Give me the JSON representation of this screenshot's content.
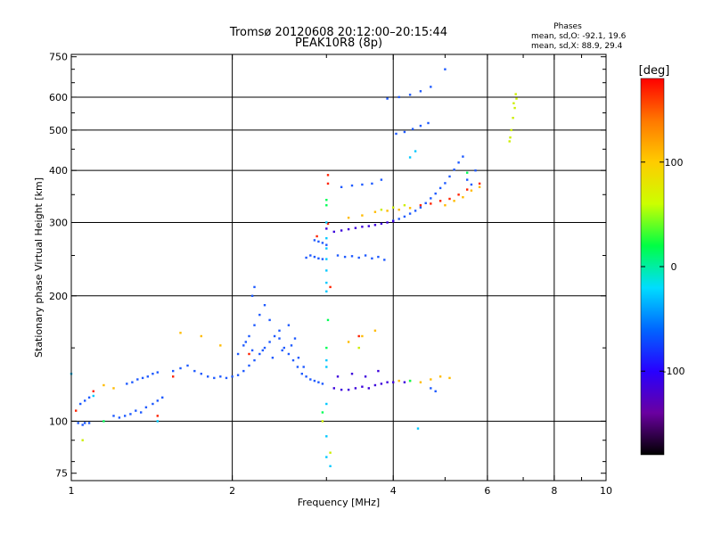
{
  "chart_data": {
    "type": "scatter",
    "title": "Tromsø 20120608 20:12:00–20:15:44",
    "subtitle": "PEAK10R8 (8p)",
    "xlabel": "Frequency [MHz]",
    "ylabel": "Stationary phase Virtual Height [km]",
    "x_scale": "log",
    "y_scale": "log",
    "xlim": [
      1,
      10
    ],
    "ylim": [
      72,
      760
    ],
    "x_ticks": [
      1,
      2,
      4,
      6,
      8,
      10
    ],
    "x_minor_ticks": [
      3,
      5,
      7,
      9
    ],
    "y_ticks": [
      75,
      100,
      200,
      300,
      400,
      500,
      600,
      750
    ],
    "y_minor_ticks": [
      80,
      90,
      150,
      250,
      350,
      450,
      550,
      650,
      700
    ],
    "grid_x": [
      1,
      2,
      4,
      6,
      8
    ],
    "grid_y": [
      100,
      200,
      300,
      400,
      500,
      600
    ],
    "phases": {
      "heading": "Phases",
      "line_o": "mean, sd,O: -92.1, 19.6",
      "line_x": "mean, sd,X:  88.9, 29.4"
    },
    "colorbar": {
      "label": "[deg]",
      "min": -180,
      "max": 180,
      "ticks": [
        100,
        0,
        -100
      ],
      "colors": [
        "#000000",
        "#6a00a0",
        "#2800ff",
        "#0066ff",
        "#00ddff",
        "#00ff44",
        "#ccff00",
        "#ffcc00",
        "#ff7700",
        "#ff0000"
      ]
    },
    "series": [
      {
        "color": "#1e5aff",
        "points": [
          [
            1.03,
            99
          ],
          [
            1.05,
            98
          ],
          [
            1.06,
            99
          ],
          [
            1.08,
            99
          ],
          [
            1.04,
            110
          ],
          [
            1.06,
            112
          ],
          [
            1.08,
            114
          ],
          [
            1.2,
            103
          ],
          [
            1.23,
            102
          ],
          [
            1.26,
            103
          ],
          [
            1.29,
            104
          ],
          [
            1.32,
            106
          ],
          [
            1.35,
            105
          ],
          [
            1.38,
            108
          ],
          [
            1.42,
            110
          ],
          [
            1.45,
            112
          ],
          [
            1.48,
            114
          ],
          [
            1.27,
            123
          ],
          [
            1.3,
            124
          ],
          [
            1.33,
            126
          ],
          [
            1.36,
            127
          ],
          [
            1.39,
            128
          ],
          [
            1.42,
            130
          ],
          [
            1.45,
            131
          ],
          [
            1.55,
            132
          ],
          [
            1.6,
            134
          ],
          [
            1.65,
            136
          ],
          [
            1.7,
            132
          ],
          [
            1.75,
            130
          ],
          [
            1.8,
            128
          ],
          [
            1.85,
            127
          ],
          [
            1.9,
            128
          ],
          [
            1.95,
            127
          ],
          [
            2.0,
            128
          ],
          [
            2.05,
            129
          ],
          [
            2.1,
            132
          ],
          [
            2.15,
            136
          ],
          [
            2.2,
            140
          ],
          [
            2.25,
            145
          ],
          [
            2.3,
            150
          ],
          [
            2.35,
            155
          ],
          [
            2.4,
            160
          ],
          [
            2.45,
            158
          ],
          [
            2.5,
            150
          ],
          [
            2.55,
            145
          ],
          [
            2.6,
            140
          ],
          [
            2.65,
            135
          ],
          [
            2.7,
            130
          ],
          [
            2.75,
            128
          ],
          [
            2.8,
            126
          ],
          [
            2.85,
            125
          ],
          [
            2.9,
            124
          ],
          [
            2.95,
            123
          ],
          [
            2.05,
            145
          ],
          [
            2.1,
            152
          ],
          [
            2.15,
            160
          ],
          [
            2.2,
            170
          ],
          [
            2.25,
            180
          ],
          [
            2.3,
            190
          ],
          [
            2.35,
            175
          ],
          [
            2.45,
            165
          ],
          [
            2.55,
            170
          ],
          [
            2.62,
            158
          ],
          [
            2.12,
            155
          ],
          [
            2.18,
            148
          ],
          [
            2.28,
            148
          ],
          [
            2.38,
            142
          ],
          [
            2.48,
            148
          ],
          [
            2.58,
            152
          ],
          [
            2.66,
            142
          ],
          [
            2.72,
            135
          ],
          [
            2.18,
            200
          ],
          [
            2.2,
            210
          ],
          [
            2.85,
            248
          ],
          [
            2.9,
            246
          ],
          [
            2.95,
            245
          ],
          [
            2.8,
            250
          ],
          [
            2.75,
            247
          ],
          [
            2.85,
            272
          ],
          [
            2.9,
            270
          ],
          [
            2.95,
            268
          ],
          [
            3.0,
            265
          ],
          [
            3.15,
            250
          ],
          [
            3.25,
            248
          ],
          [
            3.35,
            249
          ],
          [
            3.45,
            247
          ],
          [
            3.55,
            250
          ],
          [
            3.65,
            246
          ],
          [
            3.75,
            248
          ],
          [
            3.85,
            244
          ],
          [
            3.2,
            365
          ],
          [
            3.35,
            368
          ],
          [
            3.5,
            370
          ],
          [
            3.65,
            372
          ],
          [
            3.8,
            380
          ],
          [
            4.0,
            303
          ],
          [
            4.1,
            306
          ],
          [
            4.2,
            310
          ],
          [
            4.3,
            315
          ],
          [
            4.4,
            320
          ],
          [
            4.5,
            326
          ],
          [
            4.6,
            334
          ],
          [
            4.7,
            343
          ],
          [
            4.8,
            352
          ],
          [
            4.9,
            363
          ],
          [
            5.0,
            373
          ],
          [
            5.1,
            387
          ],
          [
            5.2,
            402
          ],
          [
            5.3,
            418
          ],
          [
            5.4,
            432
          ],
          [
            3.9,
            595
          ],
          [
            4.1,
            600
          ],
          [
            4.3,
            608
          ],
          [
            4.5,
            620
          ],
          [
            4.7,
            635
          ],
          [
            5.0,
            700
          ],
          [
            4.05,
            490
          ],
          [
            4.2,
            495
          ],
          [
            4.35,
            503
          ],
          [
            4.5,
            512
          ],
          [
            4.65,
            520
          ],
          [
            4.7,
            120
          ],
          [
            4.8,
            118
          ],
          [
            5.6,
            370
          ],
          [
            5.5,
            380
          ],
          [
            5.7,
            400
          ]
        ]
      },
      {
        "color": "#3c00dc",
        "points": [
          [
            3.0,
            290
          ],
          [
            3.1,
            285
          ],
          [
            3.2,
            287
          ],
          [
            3.3,
            289
          ],
          [
            3.4,
            291
          ],
          [
            3.5,
            293
          ],
          [
            3.6,
            294
          ],
          [
            3.7,
            296
          ],
          [
            3.8,
            298
          ],
          [
            3.9,
            300
          ],
          [
            4.0,
            302
          ],
          [
            3.1,
            120
          ],
          [
            3.2,
            119
          ],
          [
            3.3,
            119
          ],
          [
            3.4,
            120
          ],
          [
            3.5,
            121
          ],
          [
            3.6,
            120
          ],
          [
            3.7,
            122
          ],
          [
            3.8,
            123
          ],
          [
            3.9,
            124
          ],
          [
            4.0,
            124
          ],
          [
            3.15,
            128
          ],
          [
            3.35,
            130
          ],
          [
            3.55,
            128
          ],
          [
            3.75,
            132
          ],
          [
            4.2,
            124
          ]
        ]
      },
      {
        "color": "#ff2200",
        "points": [
          [
            4.5,
            330
          ],
          [
            4.7,
            333
          ],
          [
            4.9,
            338
          ],
          [
            5.1,
            342
          ],
          [
            5.3,
            350
          ],
          [
            5.5,
            360
          ],
          [
            5.8,
            372
          ],
          [
            3.02,
            390
          ],
          [
            3.02,
            372
          ],
          [
            3.02,
            298
          ],
          [
            3.05,
            210
          ],
          [
            2.88,
            278
          ],
          [
            3.45,
            160
          ],
          [
            1.02,
            106
          ],
          [
            1.1,
            118
          ],
          [
            1.55,
            128
          ],
          [
            2.15,
            145
          ],
          [
            1.45,
            103
          ]
        ]
      },
      {
        "color": "#ffbb00",
        "points": [
          [
            3.3,
            308
          ],
          [
            3.5,
            312
          ],
          [
            3.7,
            318
          ],
          [
            3.9,
            320
          ],
          [
            4.1,
            322
          ],
          [
            4.3,
            325
          ],
          [
            5.0,
            330
          ],
          [
            5.2,
            338
          ],
          [
            5.4,
            345
          ],
          [
            5.6,
            358
          ],
          [
            5.8,
            365
          ],
          [
            4.1,
            125
          ],
          [
            4.3,
            125
          ],
          [
            4.5,
            124
          ],
          [
            4.7,
            126
          ],
          [
            4.9,
            128
          ],
          [
            5.1,
            127
          ],
          [
            3.3,
            155
          ],
          [
            3.5,
            160
          ],
          [
            3.7,
            165
          ],
          [
            1.15,
            122
          ],
          [
            1.2,
            120
          ],
          [
            1.6,
            163
          ],
          [
            1.75,
            160
          ],
          [
            1.9,
            152
          ]
        ]
      },
      {
        "color": "#ccee00",
        "points": [
          [
            6.6,
            470
          ],
          [
            6.65,
            500
          ],
          [
            6.7,
            535
          ],
          [
            6.75,
            565
          ],
          [
            6.8,
            595
          ],
          [
            6.78,
            610
          ],
          [
            6.72,
            580
          ],
          [
            6.62,
            480
          ],
          [
            3.8,
            322
          ],
          [
            4.0,
            326
          ],
          [
            4.2,
            330
          ],
          [
            3.45,
            150
          ],
          [
            1.05,
            90
          ],
          [
            3.05,
            84
          ],
          [
            2.95,
            100
          ]
        ]
      },
      {
        "color": "#00c8ff",
        "points": [
          [
            3.0,
            205
          ],
          [
            3.0,
            215
          ],
          [
            3.0,
            230
          ],
          [
            3.0,
            245
          ],
          [
            3.0,
            260
          ],
          [
            3.0,
            275
          ],
          [
            3.0,
            300
          ],
          [
            3.0,
            140
          ],
          [
            3.0,
            135
          ],
          [
            3.0,
            110
          ],
          [
            3.0,
            92
          ],
          [
            3.0,
            82
          ],
          [
            3.05,
            78
          ],
          [
            1.0,
            130
          ],
          [
            1.1,
            115
          ],
          [
            1.45,
            100
          ],
          [
            4.45,
            96
          ],
          [
            4.3,
            430
          ],
          [
            4.4,
            445
          ]
        ]
      },
      {
        "color": "#00ff55",
        "points": [
          [
            3.0,
            330
          ],
          [
            3.0,
            340
          ],
          [
            3.02,
            175
          ],
          [
            3.0,
            150
          ],
          [
            2.95,
            105
          ],
          [
            5.5,
            395
          ],
          [
            4.3,
            125
          ],
          [
            1.15,
            100
          ]
        ]
      }
    ]
  }
}
